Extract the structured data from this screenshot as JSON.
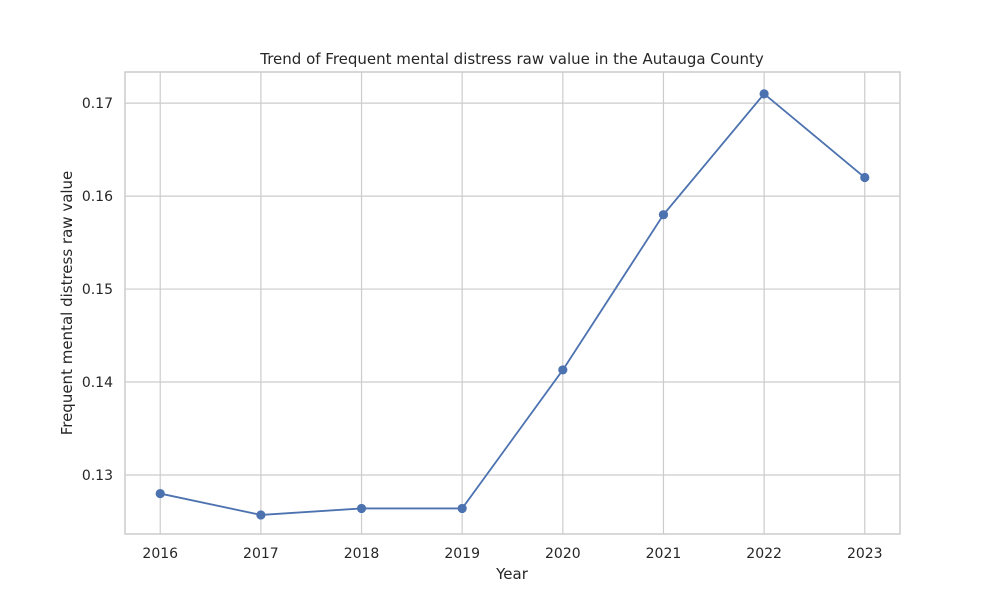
{
  "chart_data": {
    "type": "line",
    "title": "Trend of Frequent mental distress raw value in the Autauga County",
    "xlabel": "Year",
    "ylabel": "Frequent mental distress raw value",
    "x": [
      2016,
      2017,
      2018,
      2019,
      2020,
      2021,
      2022,
      2023
    ],
    "series": [
      {
        "name": "",
        "color": "#4c72b0",
        "values": [
          0.128,
          0.1257,
          0.1264,
          0.1264,
          0.1413,
          0.158,
          0.171,
          0.162
        ]
      }
    ],
    "xticks": [
      "2016",
      "2017",
      "2018",
      "2019",
      "2020",
      "2021",
      "2022",
      "2023"
    ],
    "yticks": [
      "0.13",
      "0.14",
      "0.15",
      "0.16",
      "0.17"
    ],
    "xlim": [
      2015.65,
      2023.35
    ],
    "ylim": [
      0.12365,
      0.17335
    ],
    "grid": true,
    "marker": "circle"
  }
}
